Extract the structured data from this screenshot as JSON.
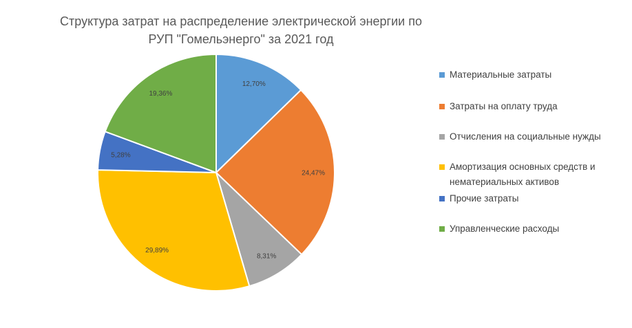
{
  "title_lines": [
    "Структура затрат на распределение электрической энергии по",
    "РУП \"Гомельэнерго\" за 2021 год"
  ],
  "chart_data": {
    "type": "pie",
    "title": "Структура затрат на распределение электрической энергии по РУП \"Гомельэнерго\" за 2021 год",
    "legend_position": "right",
    "slices": [
      {
        "name": "Материальные затраты",
        "value": 12.7,
        "label": "12,70%",
        "color": "#5B9BD5"
      },
      {
        "name": "Затраты на оплату труда",
        "value": 24.47,
        "label": "24,47%",
        "color": "#ED7D31"
      },
      {
        "name": "Отчисления на социальные нужды",
        "value": 8.31,
        "label": "8,31%",
        "color": "#A5A5A5"
      },
      {
        "name": "Амортизация основных средств и нематериальных активов",
        "value": 29.89,
        "label": "29,89%",
        "color": "#FFC000"
      },
      {
        "name": "Прочие затраты",
        "value": 5.28,
        "label": "5,28%",
        "color": "#4472C4"
      },
      {
        "name": "Управленческие расходы",
        "value": 19.36,
        "label": "19,36%",
        "color": "#70AD47"
      }
    ],
    "legend_lines": [
      [
        "Материальные затраты"
      ],
      [
        "Затраты на оплату труда"
      ],
      [
        "Отчисления на социальные нужды"
      ],
      [
        "Амортизация основных средств и",
        "нематериальных активов"
      ],
      [
        "Прочие затраты"
      ],
      [
        "Управленческие расходы"
      ]
    ]
  }
}
